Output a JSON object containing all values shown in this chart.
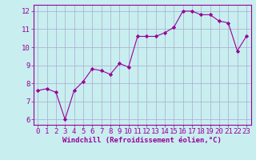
{
  "x": [
    0,
    1,
    2,
    3,
    4,
    5,
    6,
    7,
    8,
    9,
    10,
    11,
    12,
    13,
    14,
    15,
    16,
    17,
    18,
    19,
    20,
    21,
    22,
    23
  ],
  "y": [
    7.6,
    7.7,
    7.5,
    6.0,
    7.6,
    8.1,
    8.8,
    8.7,
    8.5,
    9.1,
    8.9,
    10.6,
    10.6,
    10.6,
    10.8,
    11.1,
    12.0,
    12.0,
    11.8,
    11.8,
    11.45,
    11.35,
    9.8,
    10.6
  ],
  "line_color": "#990099",
  "marker": "D",
  "marker_size": 2.2,
  "bg_color": "#c8eef0",
  "grid_color": "#aaaacc",
  "xlabel": "Windchill (Refroidissement éolien,°C)",
  "xlabel_color": "#990099",
  "ylabel_ticks": [
    6,
    7,
    8,
    9,
    10,
    11,
    12
  ],
  "xtick_labels": [
    "0",
    "1",
    "2",
    "3",
    "4",
    "5",
    "6",
    "7",
    "8",
    "9",
    "10",
    "11",
    "12",
    "13",
    "14",
    "15",
    "16",
    "17",
    "18",
    "19",
    "20",
    "21",
    "22",
    "23"
  ],
  "xlim": [
    -0.5,
    23.5
  ],
  "ylim": [
    5.7,
    12.35
  ],
  "tick_color": "#990099",
  "axis_color": "#990099",
  "tick_fontsize": 6.5,
  "xlabel_fontsize": 6.5
}
